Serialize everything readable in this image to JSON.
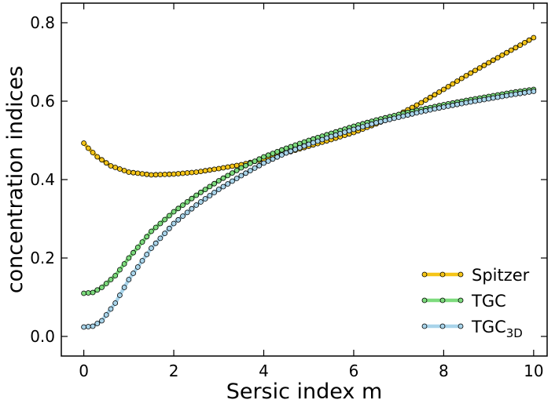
{
  "chart_data": {
    "type": "line",
    "xlabel": "Sersic index m",
    "ylabel": "concentration indices",
    "xlim": [
      -0.5,
      10.3
    ],
    "ylim": [
      -0.05,
      0.85
    ],
    "xticks": [
      0,
      2,
      4,
      6,
      8,
      10
    ],
    "xtick_labels": [
      "0",
      "2",
      "4",
      "6",
      "8",
      "10"
    ],
    "yticks": [
      0.0,
      0.2,
      0.4,
      0.6,
      0.8
    ],
    "ytick_labels": [
      "0.0",
      "0.2",
      "0.4",
      "0.6",
      "0.8"
    ],
    "grid": false,
    "legend_position": "lower-right",
    "markers": "circle",
    "sample_step": 0.1,
    "series": [
      {
        "name": "Spitzer",
        "color": "#f5c518",
        "points": [
          [
            0.0,
            0.493
          ],
          [
            0.1,
            0.48
          ],
          [
            0.3,
            0.458
          ],
          [
            0.6,
            0.435
          ],
          [
            1.0,
            0.419
          ],
          [
            1.5,
            0.412
          ],
          [
            2.0,
            0.414
          ],
          [
            2.5,
            0.419
          ],
          [
            3.0,
            0.428
          ],
          [
            3.5,
            0.438
          ],
          [
            4.0,
            0.452
          ],
          [
            4.5,
            0.468
          ],
          [
            5.0,
            0.485
          ],
          [
            5.5,
            0.502
          ],
          [
            6.0,
            0.52
          ],
          [
            6.5,
            0.542
          ],
          [
            7.0,
            0.566
          ],
          [
            7.5,
            0.596
          ],
          [
            8.0,
            0.63
          ],
          [
            8.5,
            0.665
          ],
          [
            9.0,
            0.698
          ],
          [
            9.5,
            0.73
          ],
          [
            10.0,
            0.762
          ]
        ]
      },
      {
        "name": "TGC",
        "color": "#7ddb7d",
        "points": [
          [
            0.0,
            0.11
          ],
          [
            0.2,
            0.112
          ],
          [
            0.4,
            0.125
          ],
          [
            0.7,
            0.155
          ],
          [
            1.0,
            0.2
          ],
          [
            1.5,
            0.268
          ],
          [
            2.0,
            0.318
          ],
          [
            2.5,
            0.36
          ],
          [
            3.0,
            0.397
          ],
          [
            3.5,
            0.43
          ],
          [
            4.0,
            0.458
          ],
          [
            4.5,
            0.48
          ],
          [
            5.0,
            0.5
          ],
          [
            5.5,
            0.518
          ],
          [
            6.0,
            0.536
          ],
          [
            6.5,
            0.552
          ],
          [
            7.0,
            0.566
          ],
          [
            7.5,
            0.579
          ],
          [
            8.0,
            0.591
          ],
          [
            8.5,
            0.602
          ],
          [
            9.0,
            0.612
          ],
          [
            9.5,
            0.622
          ],
          [
            10.0,
            0.63
          ]
        ]
      },
      {
        "name": "TGC₃D",
        "color": "#a8d4ea",
        "points": [
          [
            0.0,
            0.024
          ],
          [
            0.2,
            0.026
          ],
          [
            0.4,
            0.04
          ],
          [
            0.7,
            0.085
          ],
          [
            1.0,
            0.145
          ],
          [
            1.5,
            0.225
          ],
          [
            2.0,
            0.288
          ],
          [
            2.5,
            0.335
          ],
          [
            3.0,
            0.375
          ],
          [
            3.5,
            0.41
          ],
          [
            4.0,
            0.442
          ],
          [
            4.5,
            0.468
          ],
          [
            5.0,
            0.49
          ],
          [
            5.5,
            0.51
          ],
          [
            6.0,
            0.528
          ],
          [
            6.5,
            0.545
          ],
          [
            7.0,
            0.559
          ],
          [
            7.5,
            0.573
          ],
          [
            8.0,
            0.585
          ],
          [
            8.5,
            0.596
          ],
          [
            9.0,
            0.606
          ],
          [
            9.5,
            0.616
          ],
          [
            10.0,
            0.625
          ]
        ]
      }
    ],
    "legend": [
      {
        "label": "Spitzer",
        "sub": "",
        "color": "#f5c518"
      },
      {
        "label": "TGC",
        "sub": "",
        "color": "#7ddb7d"
      },
      {
        "label": "TGC",
        "sub": "3D",
        "color": "#a8d4ea"
      }
    ]
  }
}
